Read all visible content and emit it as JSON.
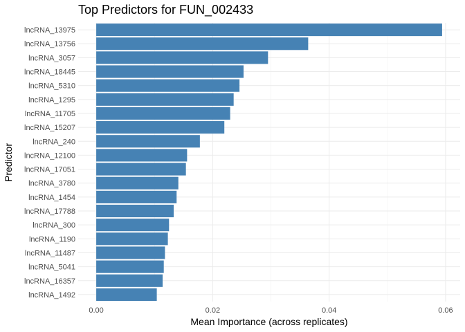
{
  "chart_data": {
    "type": "bar",
    "orientation": "horizontal",
    "title": "Top Predictors for FUN_002433",
    "xlabel": "Mean Importance (across replicates)",
    "ylabel": "Predictor",
    "categories": [
      "lncRNA_13975",
      "lncRNA_13756",
      "lncRNA_3057",
      "lncRNA_18445",
      "lncRNA_5310",
      "lncRNA_1295",
      "lncRNA_11705",
      "lncRNA_15207",
      "lncRNA_240",
      "lncRNA_12100",
      "lncRNA_17051",
      "lncRNA_3780",
      "lncRNA_1454",
      "lncRNA_17788",
      "lncRNA_300",
      "lncRNA_1190",
      "lncRNA_11487",
      "lncRNA_5041",
      "lncRNA_16357",
      "lncRNA_1492"
    ],
    "values": [
      0.0594,
      0.0364,
      0.0295,
      0.0253,
      0.0246,
      0.0236,
      0.023,
      0.022,
      0.0178,
      0.0156,
      0.0154,
      0.0141,
      0.0138,
      0.0133,
      0.0125,
      0.0123,
      0.0118,
      0.0116,
      0.0114,
      0.0104
    ],
    "x_ticks": [
      0.0,
      0.02,
      0.04,
      0.06
    ],
    "x_tick_labels": [
      "0.00",
      "0.02",
      "0.04",
      "0.06"
    ],
    "xlim": [
      -0.0031,
      0.0625
    ],
    "grid": true,
    "legend": "none",
    "bar_color": "#4682B4"
  }
}
